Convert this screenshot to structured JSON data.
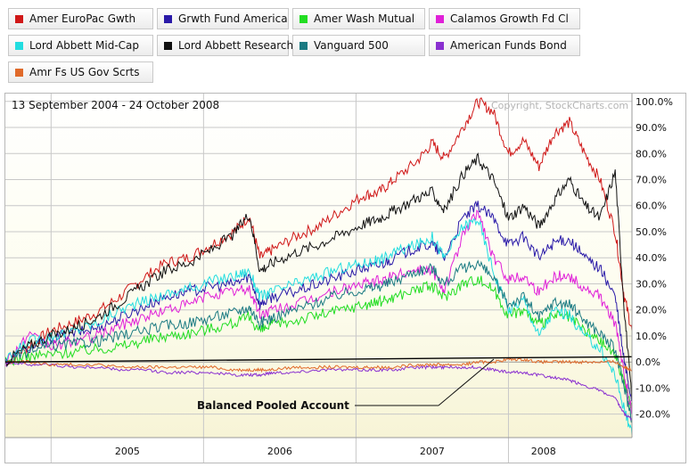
{
  "legend": [
    {
      "name": "Amer EuroPac Gwth",
      "color": "#d01818"
    },
    {
      "name": "Grwth Fund America",
      "color": "#2a1aa8"
    },
    {
      "name": "Amer Wash Mutual",
      "color": "#22dd22"
    },
    {
      "name": "Calamos Growth Fd Cl",
      "color": "#e020d8"
    },
    {
      "name": "Lord Abbett Mid-Cap",
      "color": "#22dde0"
    },
    {
      "name": "Lord Abbett Research",
      "color": "#111111"
    },
    {
      "name": "Vanguard 500",
      "color": "#1a7a82"
    },
    {
      "name": "American Funds Bond",
      "color": "#8a30d0"
    },
    {
      "name": "Amr Fs US Gov Scrts",
      "color": "#e06a2a"
    }
  ],
  "chart_data": {
    "type": "line",
    "date_range": "13 September 2004 - 24 October 2008",
    "copyright": "Copyright, StockCharts.com",
    "x_tick_labels": [
      "2005",
      "2006",
      "2007",
      "2008"
    ],
    "y_tick_labels": [
      "100.0%",
      "90.0%",
      "80.0%",
      "70.0%",
      "60.0%",
      "50.0%",
      "40.0%",
      "30.0%",
      "20.0%",
      "10.0%",
      "0.0%",
      "-10.0%",
      "-20.0%"
    ],
    "y_ticks": [
      100,
      90,
      80,
      70,
      60,
      50,
      40,
      30,
      20,
      10,
      0,
      -10,
      -20
    ],
    "ylim": [
      -29,
      103
    ],
    "x_ticks": [
      2005.0,
      2006.0,
      2007.0,
      2008.0
    ],
    "xlim": [
      2004.7,
      2008.81
    ],
    "annotation": "Balanced Pooled Account",
    "series": [
      {
        "name": "Amer EuroPac Gwth",
        "color": "#d01818",
        "x": [
          2004.7,
          2004.85,
          2005.0,
          2005.15,
          2005.3,
          2005.45,
          2005.6,
          2005.75,
          2005.9,
          2006.05,
          2006.2,
          2006.3,
          2006.37,
          2006.45,
          2006.6,
          2006.75,
          2006.9,
          2007.05,
          2007.15,
          2007.25,
          2007.4,
          2007.5,
          2007.58,
          2007.7,
          2007.8,
          2007.9,
          2008.0,
          2008.1,
          2008.2,
          2008.3,
          2008.4,
          2008.5,
          2008.6,
          2008.7,
          2008.76,
          2008.81
        ],
        "y": [
          0,
          6,
          12,
          15,
          19,
          25,
          32,
          38,
          40,
          45,
          50,
          56,
          40,
          43,
          48,
          52,
          58,
          64,
          65,
          70,
          77,
          84,
          78,
          90,
          100,
          96,
          80,
          85,
          75,
          88,
          92,
          80,
          70,
          50,
          25,
          12
        ]
      },
      {
        "name": "Grwth Fund America",
        "color": "#2a1aa8",
        "x": [
          2004.7,
          2004.85,
          2005.0,
          2005.15,
          2005.3,
          2005.45,
          2005.6,
          2005.75,
          2005.9,
          2006.05,
          2006.2,
          2006.3,
          2006.37,
          2006.45,
          2006.6,
          2006.75,
          2006.9,
          2007.05,
          2007.15,
          2007.25,
          2007.4,
          2007.5,
          2007.58,
          2007.7,
          2007.8,
          2007.9,
          2008.0,
          2008.1,
          2008.2,
          2008.3,
          2008.4,
          2008.5,
          2008.6,
          2008.7,
          2008.76,
          2008.81
        ],
        "y": [
          0,
          5,
          9,
          11,
          13,
          17,
          21,
          25,
          27,
          29,
          30,
          33,
          22,
          25,
          27,
          30,
          33,
          36,
          37,
          40,
          44,
          45,
          40,
          55,
          60,
          55,
          45,
          48,
          40,
          46,
          47,
          40,
          36,
          25,
          0,
          -15
        ]
      },
      {
        "name": "Amer Wash Mutual",
        "color": "#22dd22",
        "x": [
          2004.7,
          2004.85,
          2005.0,
          2005.15,
          2005.3,
          2005.45,
          2005.6,
          2005.75,
          2005.9,
          2006.05,
          2006.2,
          2006.3,
          2006.37,
          2006.45,
          2006.6,
          2006.75,
          2006.9,
          2007.05,
          2007.15,
          2007.25,
          2007.4,
          2007.5,
          2007.58,
          2007.7,
          2007.8,
          2007.9,
          2008.0,
          2008.1,
          2008.2,
          2008.3,
          2008.4,
          2008.5,
          2008.6,
          2008.7,
          2008.76,
          2008.81
        ],
        "y": [
          0,
          2,
          3,
          4,
          5,
          6,
          8,
          10,
          11,
          13,
          15,
          17,
          12,
          14,
          16,
          18,
          20,
          22,
          23,
          25,
          28,
          29,
          25,
          30,
          32,
          28,
          18,
          20,
          14,
          18,
          17,
          12,
          8,
          3,
          -8,
          -18
        ]
      },
      {
        "name": "Calamos Growth Fd Cl",
        "color": "#e020d8",
        "x": [
          2004.7,
          2004.85,
          2005.0,
          2005.15,
          2005.3,
          2005.45,
          2005.6,
          2005.75,
          2005.9,
          2006.05,
          2006.2,
          2006.3,
          2006.37,
          2006.45,
          2006.6,
          2006.75,
          2006.9,
          2007.05,
          2007.15,
          2007.25,
          2007.4,
          2007.5,
          2007.58,
          2007.7,
          2007.8,
          2007.9,
          2008.0,
          2008.1,
          2008.2,
          2008.3,
          2008.4,
          2008.5,
          2008.6,
          2008.7,
          2008.76,
          2008.81
        ],
        "y": [
          0,
          10,
          6,
          8,
          10,
          14,
          17,
          20,
          22,
          26,
          27,
          28,
          18,
          20,
          22,
          25,
          28,
          30,
          31,
          33,
          36,
          35,
          28,
          48,
          58,
          40,
          32,
          33,
          27,
          33,
          33,
          28,
          25,
          15,
          -5,
          -20
        ]
      },
      {
        "name": "Lord Abbett Mid-Cap",
        "color": "#22dde0",
        "x": [
          2004.7,
          2004.85,
          2005.0,
          2005.15,
          2005.3,
          2005.45,
          2005.6,
          2005.75,
          2005.9,
          2006.05,
          2006.2,
          2006.3,
          2006.37,
          2006.45,
          2006.6,
          2006.75,
          2006.9,
          2007.05,
          2007.15,
          2007.25,
          2007.4,
          2007.5,
          2007.58,
          2007.7,
          2007.8,
          2007.9,
          2008.0,
          2008.1,
          2008.2,
          2008.3,
          2008.4,
          2008.5,
          2008.6,
          2008.7,
          2008.76,
          2008.81
        ],
        "y": [
          0,
          8,
          10,
          12,
          15,
          20,
          23,
          26,
          28,
          31,
          33,
          35,
          25,
          27,
          30,
          33,
          36,
          38,
          39,
          42,
          45,
          48,
          40,
          52,
          55,
          35,
          20,
          24,
          10,
          20,
          18,
          10,
          5,
          -5,
          -18,
          -28
        ]
      },
      {
        "name": "Lord Abbett Research",
        "color": "#111111",
        "x": [
          2004.7,
          2004.85,
          2005.0,
          2005.15,
          2005.3,
          2005.45,
          2005.6,
          2005.75,
          2005.9,
          2006.05,
          2006.2,
          2006.3,
          2006.37,
          2006.45,
          2006.6,
          2006.75,
          2006.9,
          2007.05,
          2007.15,
          2007.25,
          2007.4,
          2007.5,
          2007.58,
          2007.7,
          2007.8,
          2007.9,
          2008.0,
          2008.1,
          2008.2,
          2008.3,
          2008.4,
          2008.5,
          2008.6,
          2008.7,
          2008.76,
          2008.81
        ],
        "y": [
          0,
          6,
          10,
          13,
          17,
          23,
          29,
          35,
          38,
          43,
          49,
          57,
          35,
          38,
          42,
          45,
          49,
          53,
          55,
          58,
          63,
          65,
          58,
          72,
          78,
          70,
          55,
          60,
          52,
          62,
          70,
          60,
          55,
          73,
          20,
          -15
        ]
      },
      {
        "name": "Vanguard 500",
        "color": "#1a7a82",
        "x": [
          2004.7,
          2004.85,
          2005.0,
          2005.15,
          2005.3,
          2005.45,
          2005.6,
          2005.75,
          2005.9,
          2006.05,
          2006.2,
          2006.3,
          2006.37,
          2006.45,
          2006.6,
          2006.75,
          2006.9,
          2007.05,
          2007.15,
          2007.25,
          2007.4,
          2007.5,
          2007.58,
          2007.7,
          2007.8,
          2007.9,
          2008.0,
          2008.1,
          2008.2,
          2008.3,
          2008.4,
          2008.5,
          2008.6,
          2008.7,
          2008.76,
          2008.81
        ],
        "y": [
          0,
          4,
          6,
          7,
          8,
          10,
          12,
          14,
          15,
          17,
          19,
          21,
          15,
          17,
          20,
          23,
          26,
          28,
          29,
          31,
          35,
          36,
          30,
          36,
          38,
          32,
          22,
          25,
          17,
          23,
          22,
          16,
          11,
          5,
          -10,
          -22
        ]
      },
      {
        "name": "American Funds Bond",
        "color": "#8a30d0",
        "x": [
          2004.7,
          2004.85,
          2005.0,
          2005.15,
          2005.3,
          2005.45,
          2005.6,
          2005.75,
          2005.9,
          2006.05,
          2006.2,
          2006.3,
          2006.37,
          2006.45,
          2006.6,
          2006.75,
          2006.9,
          2007.05,
          2007.15,
          2007.25,
          2007.4,
          2007.5,
          2007.58,
          2007.7,
          2007.8,
          2007.9,
          2008.0,
          2008.1,
          2008.2,
          2008.3,
          2008.4,
          2008.5,
          2008.6,
          2008.7,
          2008.76,
          2008.81
        ],
        "y": [
          0,
          -1,
          -1,
          -2,
          -2,
          -3,
          -3,
          -4,
          -4,
          -4,
          -5,
          -5,
          -5,
          -4,
          -4,
          -3,
          -3,
          -3,
          -3,
          -3,
          -2,
          -2,
          -2,
          -2,
          -2,
          -3,
          -4,
          -4,
          -5,
          -6,
          -7,
          -9,
          -11,
          -14,
          -20,
          -22
        ]
      },
      {
        "name": "Amr Fs US Gov Scrts",
        "color": "#e06a2a",
        "x": [
          2004.7,
          2004.85,
          2005.0,
          2005.15,
          2005.3,
          2005.45,
          2005.6,
          2005.75,
          2005.9,
          2006.05,
          2006.2,
          2006.3,
          2006.37,
          2006.45,
          2006.6,
          2006.75,
          2006.9,
          2007.05,
          2007.15,
          2007.25,
          2007.4,
          2007.5,
          2007.58,
          2007.7,
          2007.8,
          2007.9,
          2008.0,
          2008.1,
          2008.2,
          2008.3,
          2008.4,
          2008.5,
          2008.6,
          2008.7,
          2008.76,
          2008.81
        ],
        "y": [
          0,
          0,
          -1,
          -1,
          -1,
          -2,
          -2,
          -2,
          -2,
          -2,
          -3,
          -3,
          -3,
          -3,
          -2,
          -2,
          -2,
          -2,
          -2,
          -2,
          -1,
          -1,
          -1,
          -1,
          0,
          0,
          1,
          1,
          0,
          0,
          0,
          0,
          0,
          0,
          -2,
          -3
        ]
      },
      {
        "name": "Balanced Pooled Account",
        "color": "#000000",
        "x": [
          2004.7,
          2008.81
        ],
        "y": [
          0,
          2
        ]
      }
    ]
  }
}
